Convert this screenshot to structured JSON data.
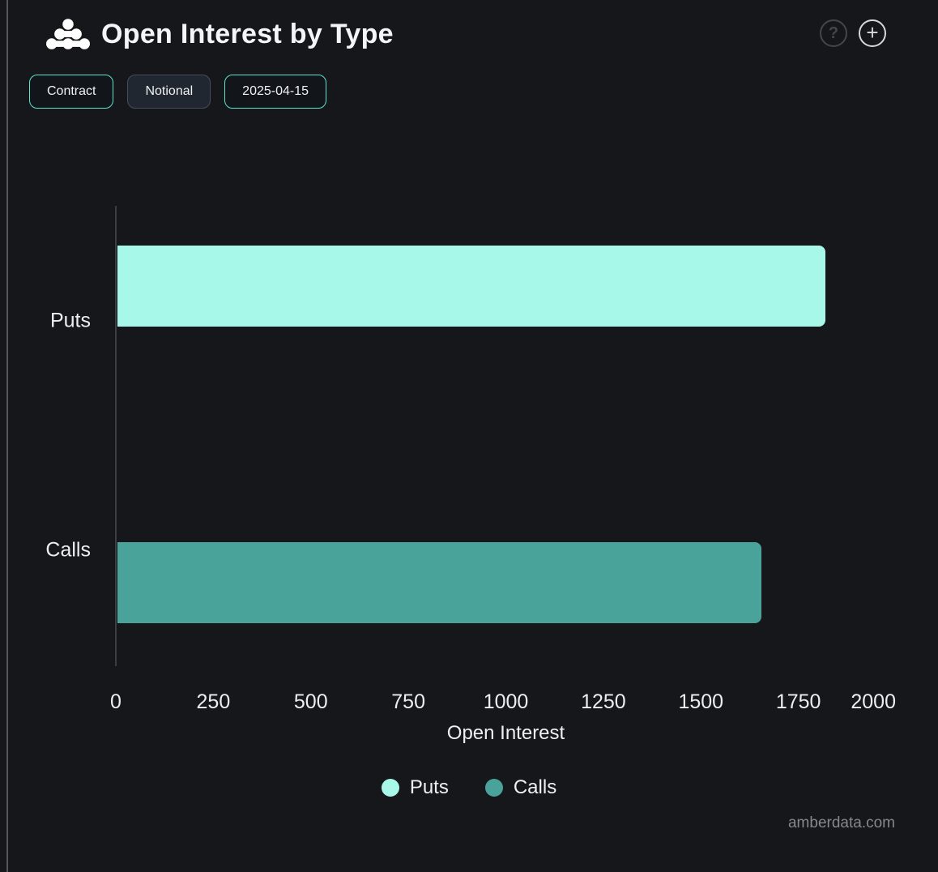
{
  "header": {
    "title": "Open Interest by Type",
    "help_glyph": "?",
    "add_glyph": "+"
  },
  "controls": {
    "buttons": [
      {
        "label": "Contract",
        "active": true
      },
      {
        "label": "Notional",
        "active": false
      },
      {
        "label": "2025-04-15",
        "active": true
      }
    ]
  },
  "chart_data": {
    "type": "bar",
    "orientation": "horizontal",
    "title": "Open Interest by Type",
    "categories": [
      "Puts",
      "Calls"
    ],
    "values": [
      1820,
      1655
    ],
    "colors": [
      "#a8f8ea",
      "#4aa39b"
    ],
    "xlabel": "Open Interest",
    "ylabel": "",
    "xlim": [
      0,
      2000
    ],
    "xticks": [
      0,
      250,
      500,
      750,
      1000,
      1250,
      1500,
      1750,
      2000
    ],
    "grid": false,
    "legend_position": "bottom"
  },
  "legend": {
    "items": [
      {
        "label": "Puts",
        "color": "#a8f8ea"
      },
      {
        "label": "Calls",
        "color": "#4aa39b"
      }
    ]
  },
  "watermark": "amberdata.com",
  "colors": {
    "background": "#16171a",
    "accent_teal": "#5ce3d0",
    "puts_bar": "#a8f8ea",
    "calls_bar": "#4aa39b",
    "axis_line": "#3a3e43"
  }
}
